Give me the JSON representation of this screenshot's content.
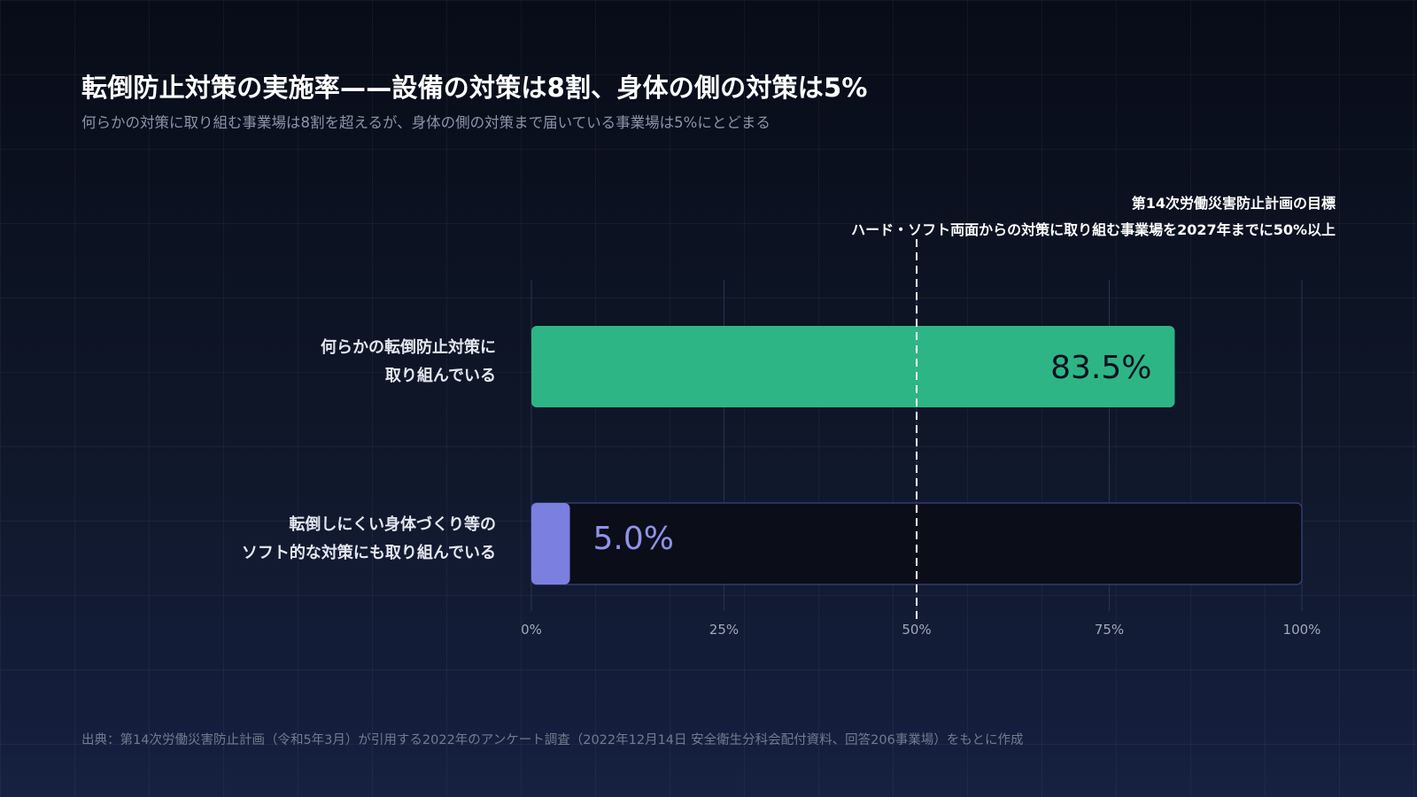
{
  "header": {
    "title": "転倒防止対策の実施率——設備の対策は8割、身体の側の対策は5%",
    "subtitle": "何らかの対策に取り組む事業場は8割を超えるが、身体の側の対策まで届いている事業場は5%にとどまる"
  },
  "reference_note": {
    "line1": "第14次労働災害防止計画の目標",
    "line2": "ハード・ソフト両面からの対策に取り組む事業場を2027年までに50%以上"
  },
  "chart_data": {
    "type": "bar",
    "orientation": "horizontal",
    "categories": [
      {
        "line1": "何らかの転倒防止対策に",
        "line2": "取り組んでいる"
      },
      {
        "line1": "転倒しにくい身体づくり等の",
        "line2": "ソフト的な対策にも取り組んでいる"
      }
    ],
    "values": [
      83.5,
      5.0
    ],
    "value_labels": [
      "83.5%",
      "5.0%"
    ],
    "xlim": [
      0,
      100
    ],
    "ticks": [
      0,
      25,
      50,
      75,
      100
    ],
    "tick_labels": [
      "0%",
      "25%",
      "50%",
      "75%",
      "100%"
    ],
    "reference_line": 50,
    "grid": true,
    "colors": {
      "bar_primary": "#2db585",
      "bar_secondary": "#7b7fe0",
      "track": "#0b0d19",
      "track_border": "#333c70",
      "value_primary": "#0b1020",
      "value_secondary": "#8f93ec",
      "axis_text": "#a2a8ba",
      "gridline": "#2a3450",
      "reference": "#ffffff"
    }
  },
  "footer": {
    "source": "出典：第14次労働災害防止計画（令和5年3月）が引用する2022年のアンケート調査（2022年12月14日 安全衛生分科会配付資料、回答206事業場）をもとに作成"
  }
}
